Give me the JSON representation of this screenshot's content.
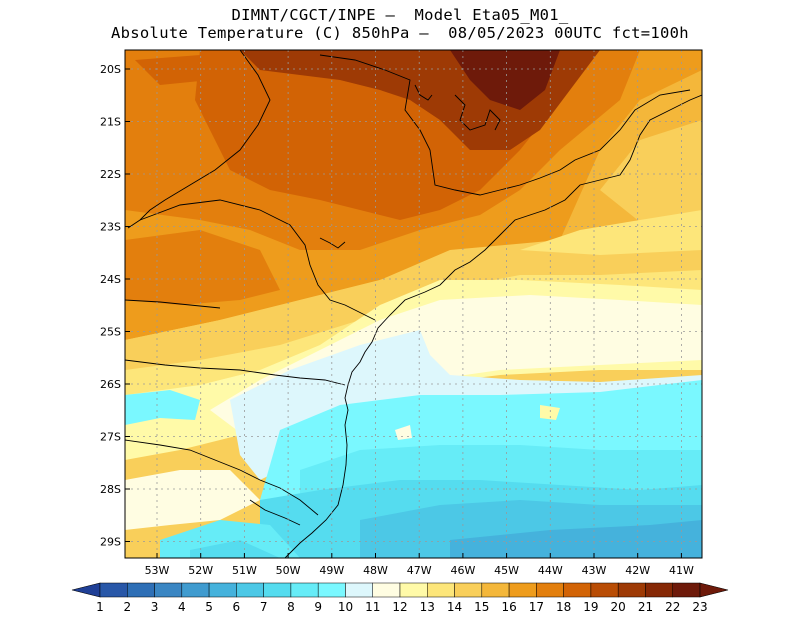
{
  "title": {
    "line1": "DIMNT/CGCT/INPE –  Model Eta05_M01_",
    "line2": "Absolute Temperature (C) 850hPa –  08/05/2023 00UTC fct=100h"
  },
  "axes": {
    "lat_labels": [
      "20S",
      "21S",
      "22S",
      "23S",
      "24S",
      "25S",
      "26S",
      "27S",
      "28S",
      "29S"
    ],
    "lon_labels": [
      "53W",
      "52W",
      "51W",
      "50W",
      "49W",
      "48W",
      "47W",
      "46W",
      "45W",
      "44W",
      "43W",
      "42W",
      "41W"
    ]
  },
  "colorbar": {
    "labels": [
      "1",
      "2",
      "3",
      "4",
      "5",
      "6",
      "7",
      "8",
      "9",
      "10",
      "11",
      "12",
      "13",
      "14",
      "15",
      "16",
      "17",
      "18",
      "19",
      "20",
      "21",
      "22",
      "23"
    ],
    "colors": [
      "#1f3f96",
      "#2857a8",
      "#2e6fb6",
      "#3a86c3",
      "#3f9bcf",
      "#45b2dc",
      "#4cc8e6",
      "#55dcef",
      "#66ecf7",
      "#7af8ff",
      "#ddf7fc",
      "#fffde2",
      "#fffaa8",
      "#fde67a",
      "#f9cf5a",
      "#f4b73a",
      "#ee9c1c",
      "#e37f0d",
      "#d26305",
      "#b94d05",
      "#9e3a05",
      "#862805",
      "#6e1a0a"
    ]
  },
  "map_colors": {
    "c23": "#6e1a0a",
    "c21": "#9e3a05",
    "c19": "#d26305",
    "c18": "#e37f0d",
    "c17": "#ee9c1c",
    "c16": "#f4b73a",
    "c15": "#f9cf5a",
    "c14": "#fde67a",
    "c13": "#fffaa8",
    "c12": "#fffde2",
    "c11": "#ddf7fc",
    "c10": "#7af8ff",
    "c9": "#66ecf7",
    "c8": "#55dcef",
    "c7": "#4cc8e6",
    "c6": "#45b2dc"
  }
}
